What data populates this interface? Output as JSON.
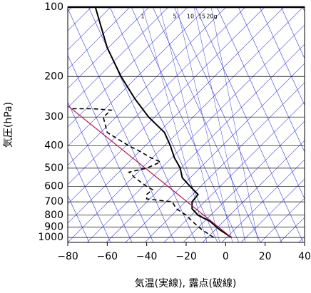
{
  "chart_data": {
    "type": "line",
    "xlabel": "気温(実線), 露点(破線)",
    "ylabel": "気圧(hPa)",
    "xlim": [
      -80,
      40
    ],
    "xticks": [
      {
        "value": -80,
        "label": "−80"
      },
      {
        "value": -60,
        "label": "−60"
      },
      {
        "value": -40,
        "label": "−40"
      },
      {
        "value": -20,
        "label": "−20"
      },
      0,
      20,
      40
    ],
    "ylim": [
      100,
      1050
    ],
    "y_scale": "log",
    "yticks": [
      100,
      200,
      300,
      400,
      500,
      600,
      700,
      800,
      900,
      1000
    ],
    "mixing_ratio_labels": [
      1,
      5,
      10,
      15,
      {
        "value": 20,
        "label": "20g"
      }
    ],
    "series": [
      {
        "color": "#000000",
        "dash": false,
        "width": 2,
        "x": [
          3,
          -3,
          -8,
          -14,
          -17,
          -17,
          -14,
          -18,
          -22,
          -23,
          -26,
          -28,
          -31,
          -39,
          -46,
          -53,
          -60,
          -66
        ],
        "y": [
          1000,
          925,
          850,
          800,
          750,
          700,
          650,
          600,
          550,
          500,
          450,
          400,
          350,
          300,
          250,
          200,
          150,
          100
        ]
      },
      {
        "color": "#000000",
        "dash": true,
        "width": 1.6,
        "x": [
          -6,
          -12,
          -17,
          -20,
          -25,
          -27,
          -40,
          -40,
          -37,
          -40,
          -46,
          -49,
          -40,
          -33,
          -38,
          -44,
          -49,
          -60,
          -62,
          -58,
          -67,
          -79
        ],
        "y": [
          1000,
          925,
          850,
          800,
          750,
          700,
          680,
          650,
          620,
          600,
          550,
          520,
          500,
          470,
          450,
          420,
          400,
          350,
          300,
          280,
          276,
          276
        ]
      },
      {
        "color": "#b0174f",
        "dash": false,
        "width": 1.2,
        "x": [
          3,
          -80
        ],
        "y": [
          1000,
          268
        ]
      }
    ]
  }
}
